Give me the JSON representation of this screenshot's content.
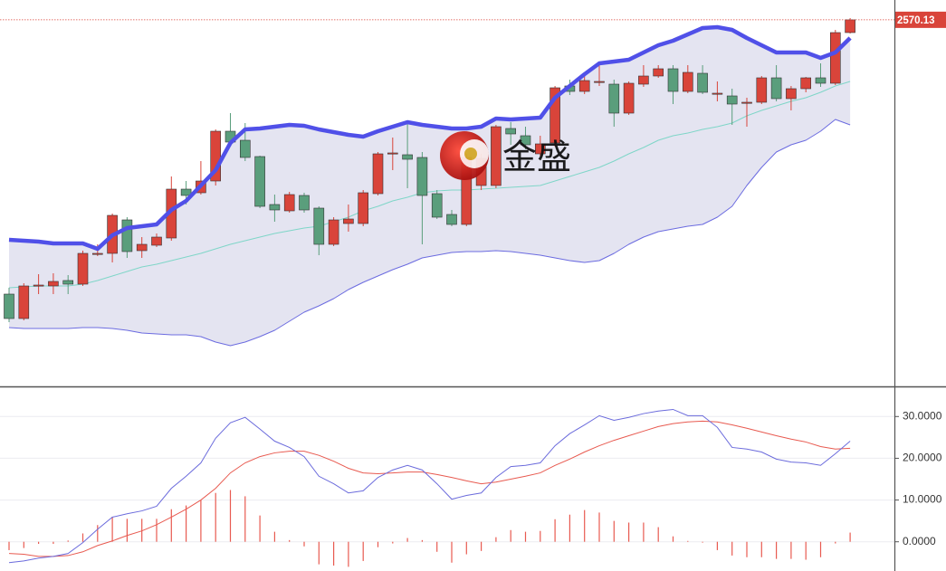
{
  "chart_data": [
    {
      "type": "candlestick",
      "watermark": "金盛",
      "last_price": 2570.13,
      "up_color": "#d9443a",
      "down_color": "#5a9e7c",
      "band_colors": {
        "upper": "#5050e8",
        "middle": "#7fd6c8",
        "lower": "#6b6be0",
        "fill": "#e4e4f1"
      },
      "ylim": [
        2165,
        2592
      ],
      "open": [
        2267,
        2240,
        2276,
        2276,
        2282,
        2278,
        2311,
        2312,
        2349,
        2315,
        2321,
        2329,
        2383,
        2379,
        2392,
        2447,
        2437,
        2419,
        2366,
        2359,
        2376,
        2362,
        2322,
        2345,
        2345,
        2378,
        2422,
        2421,
        2418,
        2378,
        2355,
        2344,
        2387,
        2387,
        2450,
        2442,
        2422,
        2434,
        2497,
        2491,
        2501,
        2499,
        2467,
        2499,
        2508,
        2516,
        2491,
        2511,
        2488,
        2486,
        2478,
        2479,
        2506,
        2483,
        2494,
        2506,
        2500,
        2556
      ],
      "high": [
        2274,
        2279,
        2289,
        2290,
        2288,
        2315,
        2322,
        2356,
        2352,
        2330,
        2334,
        2397,
        2392,
        2414,
        2449,
        2467,
        2456,
        2420,
        2377,
        2380,
        2379,
        2364,
        2352,
        2366,
        2382,
        2424,
        2440,
        2457,
        2424,
        2382,
        2360,
        2422,
        2422,
        2454,
        2457,
        2452,
        2442,
        2497,
        2504,
        2508,
        2524,
        2504,
        2502,
        2520,
        2520,
        2520,
        2520,
        2520,
        2502,
        2494,
        2484,
        2508,
        2520,
        2497,
        2507,
        2522,
        2559,
        2572
      ],
      "low": [
        2236,
        2238,
        2267,
        2267,
        2267,
        2276,
        2309,
        2302,
        2307,
        2307,
        2319,
        2326,
        2366,
        2377,
        2387,
        2432,
        2414,
        2362,
        2347,
        2357,
        2357,
        2310,
        2320,
        2336,
        2342,
        2376,
        2404,
        2384,
        2322,
        2350,
        2342,
        2342,
        2382,
        2384,
        2432,
        2427,
        2420,
        2430,
        2487,
        2488,
        2497,
        2452,
        2465,
        2496,
        2506,
        2477,
        2489,
        2488,
        2480,
        2454,
        2452,
        2477,
        2480,
        2470,
        2490,
        2496,
        2498,
        2555
      ],
      "close": [
        2240,
        2276,
        2277,
        2281,
        2278,
        2312,
        2312,
        2354,
        2314,
        2322,
        2330,
        2383,
        2376,
        2392,
        2447,
        2435,
        2418,
        2364,
        2360,
        2377,
        2360,
        2322,
        2349,
        2350,
        2379,
        2422,
        2423,
        2416,
        2376,
        2352,
        2344,
        2418,
        2417,
        2452,
        2444,
        2432,
        2433,
        2495,
        2491,
        2503,
        2502,
        2467,
        2500,
        2508,
        2516,
        2491,
        2512,
        2490,
        2489,
        2477,
        2479,
        2506,
        2483,
        2494,
        2506,
        2500,
        2556,
        2570.13
      ],
      "upper": [
        2327,
        2326,
        2325,
        2323,
        2323,
        2323,
        2317,
        2332,
        2340,
        2342,
        2344,
        2360,
        2370,
        2387,
        2404,
        2434,
        2449,
        2450,
        2452,
        2454,
        2453,
        2449,
        2446,
        2443,
        2441,
        2447,
        2452,
        2457,
        2454,
        2452,
        2450,
        2450,
        2452,
        2461,
        2460,
        2461,
        2462,
        2484,
        2497,
        2510,
        2522,
        2524,
        2526,
        2534,
        2542,
        2547,
        2554,
        2561,
        2562,
        2559,
        2550,
        2542,
        2534,
        2534,
        2534,
        2528,
        2534,
        2550
      ],
      "middle": [
        2274,
        2275,
        2276,
        2276,
        2276,
        2278,
        2282,
        2287,
        2292,
        2297,
        2300,
        2304,
        2308,
        2312,
        2317,
        2322,
        2326,
        2330,
        2334,
        2337,
        2340,
        2342,
        2347,
        2352,
        2359,
        2364,
        2370,
        2374,
        2379,
        2381,
        2382,
        2382,
        2383,
        2384,
        2385,
        2386,
        2387,
        2392,
        2397,
        2402,
        2407,
        2414,
        2422,
        2429,
        2437,
        2442,
        2445,
        2449,
        2452,
        2456,
        2464,
        2470,
        2475,
        2480,
        2484,
        2490,
        2497,
        2502
      ],
      "lower": [
        2230,
        2229,
        2229,
        2229,
        2229,
        2230,
        2230,
        2229,
        2227,
        2224,
        2223,
        2222,
        2222,
        2220,
        2214,
        2210,
        2214,
        2220,
        2227,
        2237,
        2247,
        2254,
        2262,
        2272,
        2280,
        2287,
        2294,
        2300,
        2307,
        2310,
        2313,
        2314,
        2314,
        2315,
        2314,
        2312,
        2310,
        2307,
        2304,
        2302,
        2304,
        2312,
        2322,
        2330,
        2336,
        2339,
        2342,
        2344,
        2352,
        2364,
        2387,
        2407,
        2424,
        2432,
        2437,
        2447,
        2460,
        2454
      ]
    },
    {
      "type": "macd",
      "dif_color": "#6b6bdc",
      "dea_color": "#e85a50",
      "histogram_color": "#e85a50",
      "ylim": [
        -7,
        37
      ],
      "yticks": [
        {
          "value": 30,
          "label": "30.0000"
        },
        {
          "value": 20,
          "label": "20.0000"
        },
        {
          "value": 10,
          "label": "10.0000"
        },
        {
          "value": 0,
          "label": "0.0000"
        }
      ],
      "dif": [
        -5.0,
        -4.6,
        -3.9,
        -3.5,
        -2.8,
        -0.2,
        3.0,
        5.9,
        6.7,
        7.4,
        8.5,
        12.8,
        15.7,
        18.9,
        24.8,
        28.5,
        29.8,
        27.0,
        24.1,
        22.6,
        20.4,
        15.7,
        13.9,
        11.7,
        12.2,
        15.4,
        17.2,
        18.3,
        17.2,
        13.9,
        10.2,
        11.1,
        11.7,
        15.4,
        18.0,
        18.3,
        18.9,
        23.0,
        25.9,
        28.0,
        30.2,
        29.1,
        29.8,
        30.7,
        31.3,
        31.7,
        30.2,
        30.2,
        27.4,
        22.6,
        22.2,
        21.5,
        19.8,
        19.1,
        18.9,
        18.3,
        21.1,
        24.1
      ],
      "dea": [
        -2.8,
        -3.0,
        -3.5,
        -3.5,
        -3.3,
        -2.4,
        -0.9,
        0.2,
        1.5,
        2.6,
        4.1,
        5.9,
        7.8,
        10.0,
        12.8,
        16.5,
        18.9,
        20.4,
        21.3,
        21.7,
        21.7,
        20.7,
        19.3,
        17.6,
        16.5,
        16.3,
        16.5,
        16.7,
        16.7,
        16.1,
        15.4,
        14.6,
        13.9,
        14.3,
        15.0,
        15.7,
        16.5,
        18.3,
        19.8,
        21.5,
        23.0,
        24.3,
        25.4,
        26.5,
        27.6,
        28.3,
        28.7,
        28.9,
        28.7,
        28.0,
        27.2,
        26.3,
        25.4,
        24.6,
        23.9,
        22.8,
        22.2,
        22.4
      ],
      "histogram": [
        -2,
        -1.5,
        -0.5,
        -0.5,
        0.3,
        2,
        4,
        6,
        5.5,
        5.5,
        5.5,
        7.8,
        8.7,
        10,
        11.7,
        12.4,
        10.9,
        6.3,
        2.4,
        0.4,
        -1.1,
        -5.4,
        -5.7,
        -6,
        -4.6,
        -1.3,
        -0.4,
        0.9,
        0.4,
        -2.4,
        -5,
        -3,
        -2.2,
        1.1,
        2.8,
        2.4,
        2.6,
        5.4,
        6.5,
        7.6,
        7,
        5,
        4.6,
        4.6,
        3.5,
        1.3,
        0.2,
        -0.2,
        -2,
        -3.3,
        -3.7,
        -3.7,
        -4.1,
        -4.1,
        -4.3,
        -3.7,
        -0.4,
        2.2
      ]
    }
  ]
}
